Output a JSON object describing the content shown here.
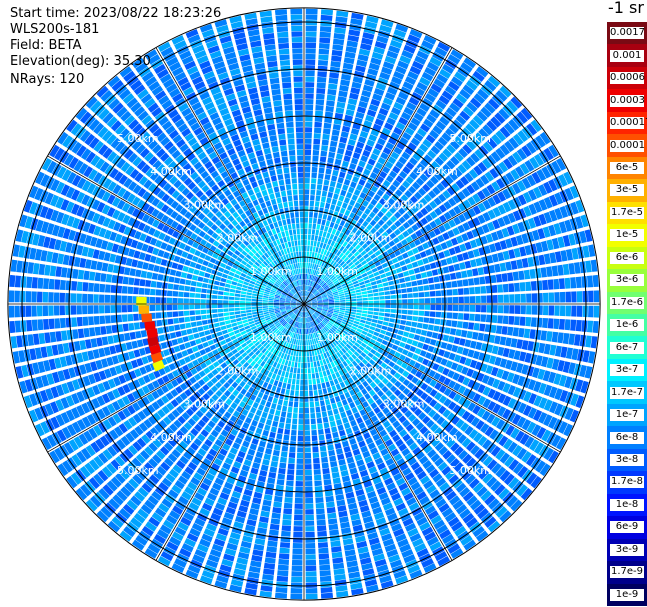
{
  "header": {
    "start_time": "Start time: 2023/08/22 18:23:26",
    "instrument": "WLS200s-181",
    "field": "Field: BETA",
    "elevation": "Elevation(deg): 35.30",
    "nrays": "NRays: 120"
  },
  "colorbar": {
    "unit": "-1 sr",
    "levels": [
      {
        "label": "0.0017",
        "color": "#7a0a14"
      },
      {
        "label": "0.001",
        "color": "#a80010"
      },
      {
        "label": "0.0006",
        "color": "#cc0008"
      },
      {
        "label": "0.0003",
        "color": "#ee0000"
      },
      {
        "label": "0.00017",
        "color": "#ff2400"
      },
      {
        "label": "0.0001",
        "color": "#ff5000"
      },
      {
        "label": "6e-5",
        "color": "#ff8400"
      },
      {
        "label": "3e-5",
        "color": "#ffb000"
      },
      {
        "label": "1.7e-5",
        "color": "#ffe000"
      },
      {
        "label": "1e-5",
        "color": "#f2ff00"
      },
      {
        "label": "6e-6",
        "color": "#c8ff10"
      },
      {
        "label": "3e-6",
        "color": "#98ff3c"
      },
      {
        "label": "1.7e-6",
        "color": "#70ff70"
      },
      {
        "label": "1e-6",
        "color": "#44ffa4"
      },
      {
        "label": "6e-7",
        "color": "#20ffd4"
      },
      {
        "label": "3e-7",
        "color": "#00f0ff"
      },
      {
        "label": "1.7e-7",
        "color": "#00c8ff"
      },
      {
        "label": "1e-7",
        "color": "#00a4ff"
      },
      {
        "label": "6e-8",
        "color": "#0080ff"
      },
      {
        "label": "3e-8",
        "color": "#005cff"
      },
      {
        "label": "1.7e-8",
        "color": "#0038ff"
      },
      {
        "label": "1e-8",
        "color": "#0014ff"
      },
      {
        "label": "6e-9",
        "color": "#0000e0"
      },
      {
        "label": "3e-9",
        "color": "#0000b4"
      },
      {
        "label": "1.7e-9",
        "color": "#00008a"
      },
      {
        "label": "1e-9",
        "color": "#000060"
      }
    ]
  },
  "chart_data": {
    "type": "heatmap",
    "projection": "polar-ppi",
    "n_rays": 120,
    "max_range_km": 6.3,
    "range_rings": [
      {
        "range_km": 1,
        "label": "1.00km"
      },
      {
        "range_km": 2,
        "label": "2.00km"
      },
      {
        "range_km": 3,
        "label": "3.00km"
      },
      {
        "range_km": 4,
        "label": "4.00km"
      },
      {
        "range_km": 5,
        "label": "5.00km"
      },
      {
        "range_km": 6,
        "label": ""
      }
    ],
    "label_ring_km": [
      1,
      2,
      3,
      4,
      5
    ],
    "spoke_angles_deg": [
      0,
      30,
      60,
      90,
      120,
      150,
      180,
      210,
      240,
      270,
      300,
      330
    ],
    "background_level_by_range": [
      {
        "max_km": 0.6,
        "levels": [
          16,
          17,
          18,
          19
        ]
      },
      {
        "max_km": 1.7,
        "levels": [
          15,
          16,
          16,
          17
        ]
      },
      {
        "max_km": 2.6,
        "levels": [
          16,
          17,
          17,
          18
        ]
      },
      {
        "max_km": 6.3,
        "levels": [
          17,
          18,
          18,
          19
        ]
      }
    ],
    "feature": {
      "description_levels": "strong return cells",
      "cells": [
        {
          "azimuth_deg": 271,
          "range_km": 3.45,
          "level": 9
        },
        {
          "azimuth_deg": 268,
          "range_km": 3.4,
          "level": 7
        },
        {
          "azimuth_deg": 265,
          "range_km": 3.35,
          "level": 5
        },
        {
          "azimuth_deg": 262,
          "range_km": 3.3,
          "level": 3
        },
        {
          "azimuth_deg": 259,
          "range_km": 3.28,
          "level": 3
        },
        {
          "azimuth_deg": 256,
          "range_km": 3.3,
          "level": 2
        },
        {
          "azimuth_deg": 253,
          "range_km": 3.3,
          "level": 3
        },
        {
          "azimuth_deg": 250,
          "range_km": 3.32,
          "level": 5
        },
        {
          "azimuth_deg": 247,
          "range_km": 3.35,
          "level": 9
        }
      ]
    }
  }
}
